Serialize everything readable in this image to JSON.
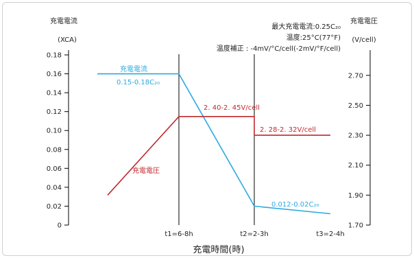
{
  "chart_data": {
    "type": "line",
    "left_axis": {
      "title": "充電電流",
      "unit": "(XCA)",
      "ticks": [
        "0",
        "0.02",
        "0.04",
        "0.06",
        "0.08",
        "0.10",
        "0.12",
        "0.14",
        "0.16",
        "0.18"
      ],
      "range": [
        0,
        0.18
      ]
    },
    "right_axis": {
      "title": "充電電圧",
      "unit": "(V/cell)",
      "ticks": [
        "1.70",
        "1.90",
        "2.10",
        "2.30",
        "2.50",
        "2.70"
      ],
      "range": [
        1.7,
        2.8
      ]
    },
    "x_axis": {
      "title": "充電時間(時)",
      "ticks": [
        {
          "label": "t1=6-8h",
          "t": 1
        },
        {
          "label": "t2=2-3h",
          "t": 2
        },
        {
          "label": "t3=2-4h",
          "t": 3
        }
      ]
    },
    "series": [
      {
        "name": "充電電流",
        "axis": "left",
        "color": "#2aa9e0",
        "points": [
          [
            0,
            0.16
          ],
          [
            1,
            0.16
          ],
          [
            2,
            0.02
          ],
          [
            3,
            0.012
          ]
        ]
      },
      {
        "name": "充電電圧",
        "axis": "right",
        "color": "#c0282d",
        "points": [
          [
            0,
            1.9
          ],
          [
            1,
            2.425
          ],
          [
            2,
            2.425
          ],
          [
            2,
            2.3
          ],
          [
            3,
            2.3
          ]
        ]
      }
    ],
    "annotations": [
      {
        "text": "充電電流",
        "color": "#2aa9e0"
      },
      {
        "text": "0.15-0.18C₂₀",
        "color": "#2aa9e0"
      },
      {
        "text": "2. 40-2. 45V/cell",
        "color": "#c0282d"
      },
      {
        "text": "2. 28-2. 32V/cell",
        "color": "#c0282d"
      },
      {
        "text": "充電電圧",
        "color": "#c0282d"
      },
      {
        "text": "0.012-0.02C₂₀",
        "color": "#2aa9e0"
      }
    ],
    "notes": [
      "最大充電電流:0.25C₂₀",
      "温度:25°C(77°F)",
      "温度補正 : -4mV/°C/cell(-2mV/°F/cell)"
    ],
    "grid": false
  }
}
